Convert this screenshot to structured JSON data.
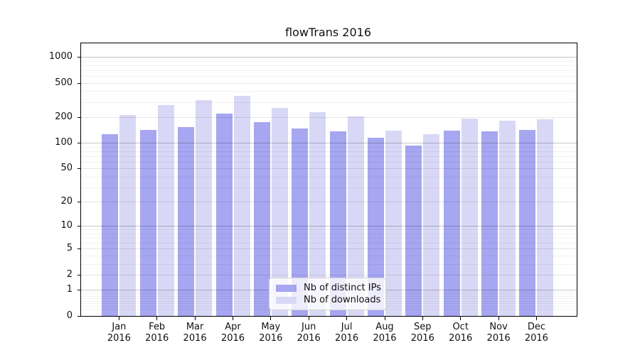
{
  "title": "flowTrans 2016",
  "colors": {
    "bar_ips": "#a6a6f1",
    "bar_downloads": "#d8d8f6",
    "grid_major": "rgba(0,0,0,0.22)",
    "grid_mid": "rgba(0,0,0,0.10)",
    "grid_minor": "rgba(0,0,0,0.05)",
    "axis": "#000000",
    "text": "#111111"
  },
  "legend": {
    "items": [
      {
        "label": "Nb of distinct IPs",
        "color_key": "bar_ips"
      },
      {
        "label": "Nb of downloads",
        "color_key": "bar_downloads"
      }
    ]
  },
  "chart_data": {
    "type": "bar",
    "title": "flowTrans 2016",
    "scale": "log10(1+y)",
    "categories": [
      "Jan 2016",
      "Feb 2016",
      "Mar 2016",
      "Apr 2016",
      "May 2016",
      "Jun 2016",
      "Jul 2016",
      "Aug 2016",
      "Sep 2016",
      "Oct 2016",
      "Nov 2016",
      "Dec 2016"
    ],
    "series": [
      {
        "name": "Nb of distinct IPs",
        "color": "#a6a6f1",
        "values": [
          127,
          141,
          152,
          219,
          173,
          147,
          137,
          114,
          93,
          140,
          136,
          141
        ]
      },
      {
        "name": "Nb of downloads",
        "color": "#d8d8f6",
        "values": [
          211,
          276,
          317,
          351,
          256,
          229,
          205,
          138,
          126,
          192,
          180,
          189
        ]
      }
    ],
    "xlabel": "",
    "ylabel": "",
    "ylim": [
      0,
      1460
    ],
    "yticks": [
      0,
      1,
      2,
      5,
      10,
      20,
      50,
      100,
      200,
      500,
      1000
    ],
    "ytick_labels": [
      "0",
      "1",
      "2",
      "5",
      "10",
      "20",
      "50",
      "100",
      "200",
      "500",
      "1000"
    ],
    "gridlines": {
      "major": [
        1,
        10,
        100,
        1000
      ],
      "mid": [
        2,
        5,
        20,
        50,
        200,
        500
      ],
      "minor": [
        0.2,
        0.3,
        0.4,
        0.5,
        0.6,
        0.7,
        0.8,
        0.9,
        3,
        4,
        6,
        7,
        8,
        9,
        30,
        40,
        60,
        70,
        80,
        90,
        300,
        400,
        600,
        700,
        800,
        900
      ]
    },
    "grid": "horizontal",
    "legend_position": "lower center"
  }
}
